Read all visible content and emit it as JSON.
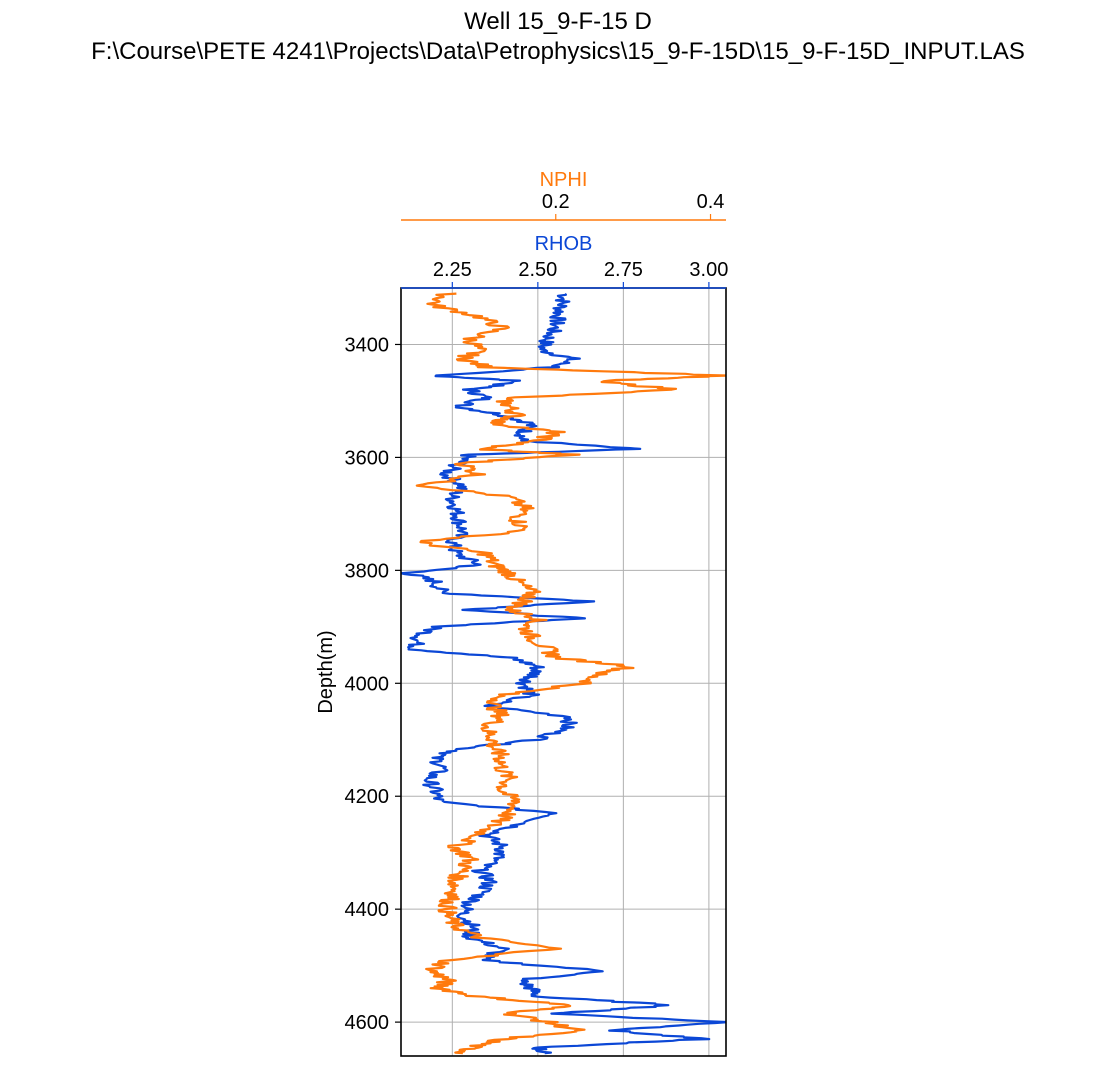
{
  "figure": {
    "title_line1": "Well 15_9-F-15 D",
    "title_line2": "F:\\Course\\PETE 4241\\Projects\\Data\\Petrophysics\\15_9-F-15D\\15_9-F-15D_INPUT.LAS"
  },
  "chart_data": {
    "type": "line",
    "ylabel": "Depth(m)",
    "ylim": [
      4660,
      3300
    ],
    "y_ticks": [
      3400,
      3600,
      3800,
      4000,
      4200,
      4400,
      4600
    ],
    "grid": true,
    "colors": {
      "RHOB": "#0b47d6",
      "NPHI": "#ff7a0d"
    },
    "axes": [
      {
        "name": "NPHI",
        "xlim": [
          0.0,
          0.42
        ],
        "ticks": [
          0.2,
          0.4
        ],
        "tick_labels": [
          "0.2",
          "0.4"
        ]
      },
      {
        "name": "RHOB",
        "xlim": [
          2.1,
          3.05
        ],
        "ticks": [
          2.25,
          2.5,
          2.75,
          3.0
        ],
        "tick_labels": [
          "2.25",
          "2.50",
          "2.75",
          "3.00"
        ]
      }
    ],
    "series": [
      {
        "name": "RHOB",
        "depth": [
          3310,
          3330,
          3350,
          3370,
          3390,
          3410,
          3425,
          3440,
          3455,
          3465,
          3480,
          3495,
          3510,
          3525,
          3540,
          3555,
          3570,
          3585,
          3595,
          3610,
          3630,
          3650,
          3670,
          3690,
          3710,
          3730,
          3750,
          3770,
          3790,
          3805,
          3820,
          3840,
          3855,
          3870,
          3885,
          3900,
          3920,
          3940,
          3955,
          3970,
          3985,
          4000,
          4020,
          4040,
          4060,
          4080,
          4100,
          4115,
          4130,
          4150,
          4170,
          4190,
          4210,
          4230,
          4250,
          4270,
          4290,
          4310,
          4330,
          4350,
          4370,
          4390,
          4410,
          4430,
          4450,
          4470,
          4490,
          4510,
          4525,
          4540,
          4555,
          4570,
          4585,
          4600,
          4615,
          4630,
          4645,
          4655
        ],
        "values": [
          2.58,
          2.57,
          2.56,
          2.55,
          2.53,
          2.51,
          2.6,
          2.55,
          2.2,
          2.45,
          2.3,
          2.35,
          2.27,
          2.4,
          2.48,
          2.46,
          2.45,
          2.78,
          2.3,
          2.27,
          2.23,
          2.28,
          2.25,
          2.26,
          2.27,
          2.28,
          2.25,
          2.26,
          2.33,
          2.12,
          2.2,
          2.22,
          2.66,
          2.3,
          2.62,
          2.2,
          2.15,
          2.14,
          2.42,
          2.5,
          2.49,
          2.46,
          2.48,
          2.35,
          2.6,
          2.58,
          2.5,
          2.29,
          2.2,
          2.22,
          2.18,
          2.2,
          2.21,
          2.56,
          2.45,
          2.35,
          2.4,
          2.38,
          2.33,
          2.36,
          2.34,
          2.3,
          2.28,
          2.31,
          2.3,
          2.4,
          2.33,
          2.7,
          2.45,
          2.48,
          2.5,
          2.9,
          2.55,
          3.05,
          2.72,
          2.98,
          2.5,
          2.52
        ]
      },
      {
        "name": "NPHI",
        "depth": [
          3310,
          3330,
          3350,
          3370,
          3390,
          3410,
          3425,
          3440,
          3455,
          3465,
          3480,
          3495,
          3510,
          3525,
          3540,
          3555,
          3570,
          3585,
          3595,
          3610,
          3630,
          3650,
          3670,
          3690,
          3710,
          3730,
          3750,
          3770,
          3790,
          3805,
          3820,
          3840,
          3855,
          3870,
          3885,
          3900,
          3920,
          3940,
          3955,
          3970,
          3985,
          4000,
          4020,
          4040,
          4060,
          4080,
          4100,
          4115,
          4130,
          4150,
          4170,
          4190,
          4210,
          4230,
          4250,
          4270,
          4290,
          4310,
          4330,
          4350,
          4370,
          4390,
          4410,
          4430,
          4450,
          4470,
          4490,
          4510,
          4525,
          4540,
          4555,
          4570,
          4585,
          4600,
          4615,
          4630,
          4645,
          4655
        ],
        "values": [
          0.06,
          0.04,
          0.1,
          0.13,
          0.09,
          0.1,
          0.08,
          0.11,
          0.42,
          0.25,
          0.36,
          0.13,
          0.14,
          0.15,
          0.12,
          0.2,
          0.18,
          0.1,
          0.22,
          0.08,
          0.1,
          0.03,
          0.14,
          0.16,
          0.15,
          0.16,
          0.02,
          0.11,
          0.12,
          0.14,
          0.15,
          0.17,
          0.16,
          0.14,
          0.18,
          0.16,
          0.17,
          0.19,
          0.2,
          0.3,
          0.25,
          0.24,
          0.13,
          0.12,
          0.13,
          0.11,
          0.12,
          0.12,
          0.13,
          0.13,
          0.14,
          0.13,
          0.15,
          0.14,
          0.12,
          0.1,
          0.07,
          0.09,
          0.08,
          0.07,
          0.07,
          0.06,
          0.06,
          0.07,
          0.1,
          0.2,
          0.06,
          0.04,
          0.06,
          0.05,
          0.1,
          0.22,
          0.14,
          0.19,
          0.23,
          0.13,
          0.09,
          0.08
        ]
      }
    ]
  }
}
